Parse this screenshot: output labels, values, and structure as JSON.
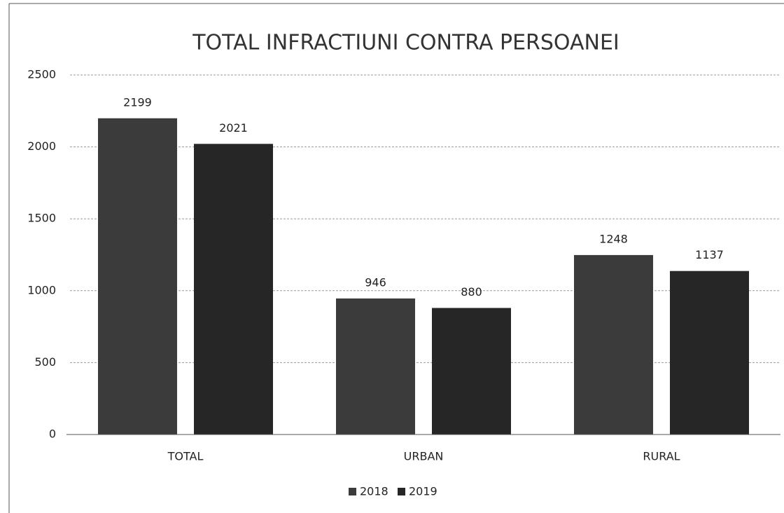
{
  "chart_data": {
    "type": "bar",
    "title": "TOTAL INFRACTIUNI CONTRA PERSOANEI",
    "categories": [
      "TOTAL",
      "URBAN",
      "RURAL"
    ],
    "series": [
      {
        "name": "2018",
        "color": "#3b3b3b",
        "values": [
          2199,
          946,
          1248
        ]
      },
      {
        "name": "2019",
        "color": "#262626",
        "values": [
          2021,
          880,
          1137
        ]
      }
    ],
    "ylim": [
      0,
      2500
    ],
    "yticks": [
      0,
      500,
      1000,
      1500,
      2000,
      2500
    ],
    "grid": true,
    "legend": "bottom"
  }
}
